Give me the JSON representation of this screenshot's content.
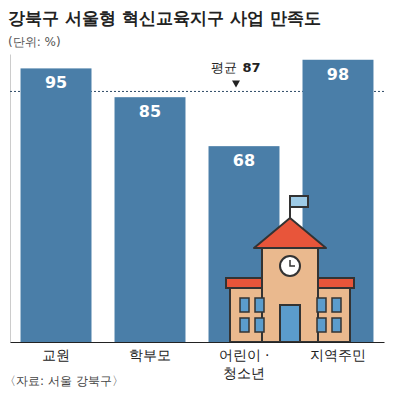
{
  "chart_data": {
    "type": "bar",
    "title": "강북구 서울형 혁신교육지구 사업 만족도",
    "subtitle": "(단위: %)",
    "categories": [
      "교원",
      "학부모",
      "어린이 ·\n청소년",
      "지역주민"
    ],
    "values": [
      95,
      85,
      68,
      98
    ],
    "color": "#4a7ea8",
    "ylim": [
      0,
      100
    ],
    "yticks": [],
    "tick_labels": "x",
    "data_labels": true,
    "grid": false,
    "annotations": [
      {
        "label": "평균",
        "value": 87
      }
    ],
    "source": "〈자료: 서울 강북구〉"
  }
}
